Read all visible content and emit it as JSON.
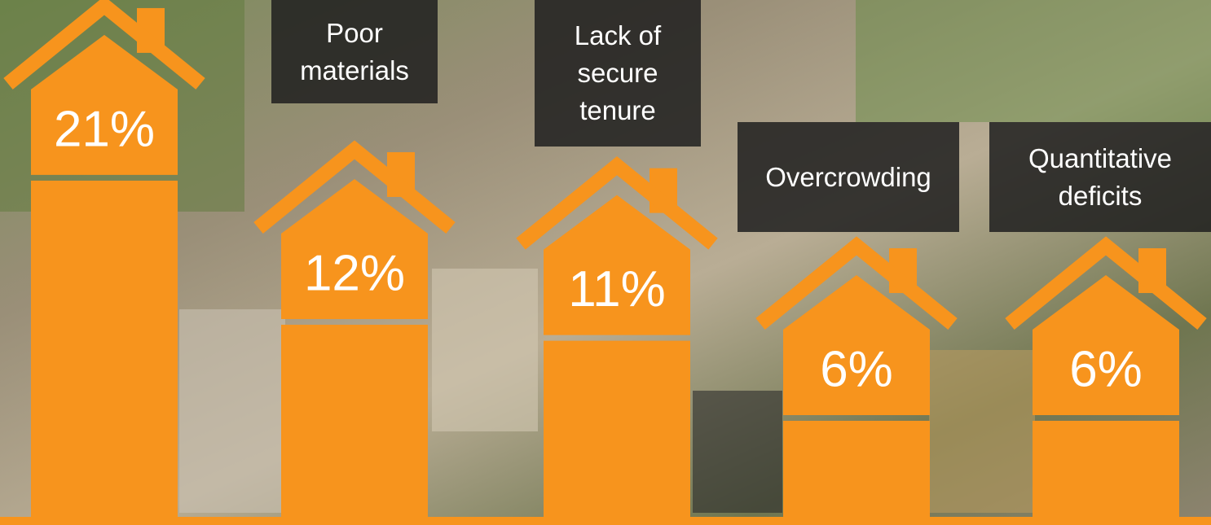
{
  "chart_data": {
    "type": "bar",
    "categories": [
      null,
      "Poor materials",
      "Lack of secure tenure",
      "Overcrowding",
      "Quantitative deficits"
    ],
    "values": [
      21,
      12,
      11,
      6,
      6
    ],
    "value_labels": [
      "21%",
      "12%",
      "11%",
      "6%",
      "6%"
    ],
    "color": "#f7941d"
  }
}
